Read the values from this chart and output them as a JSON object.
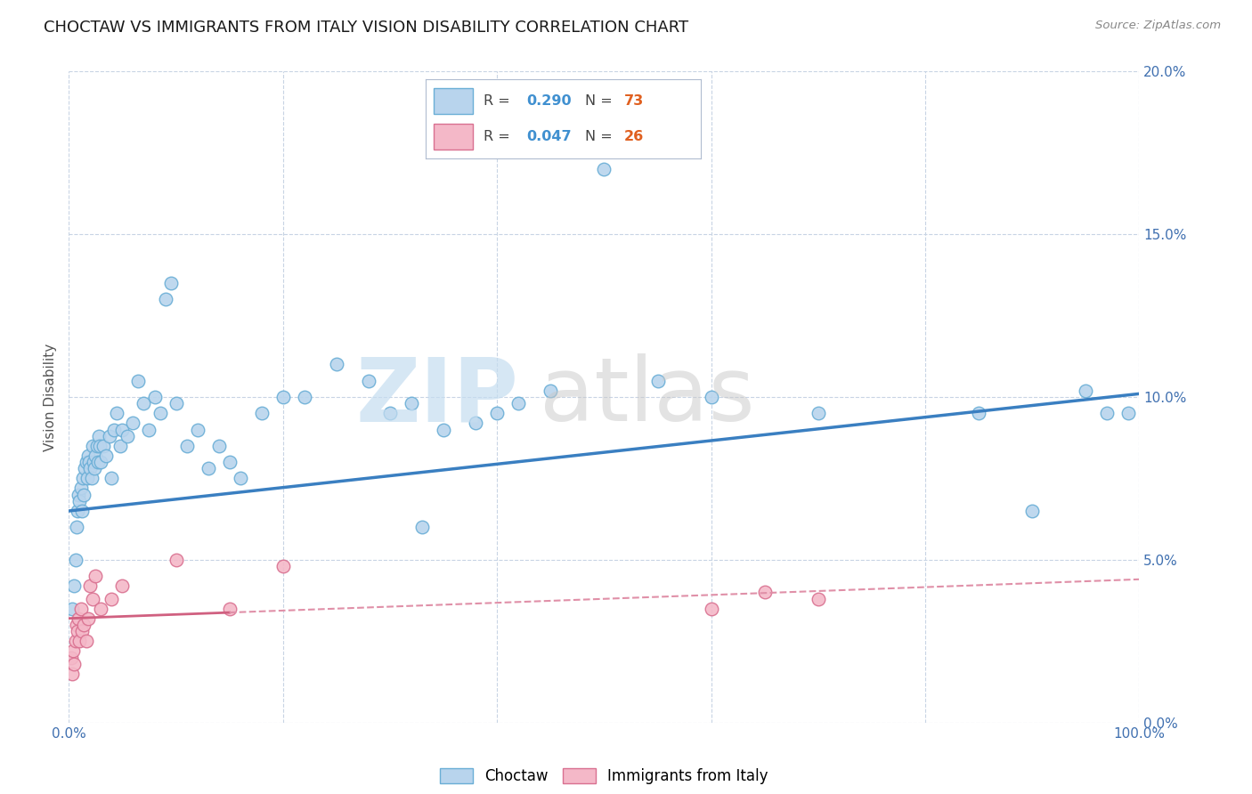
{
  "title": "CHOCTAW VS IMMIGRANTS FROM ITALY VISION DISABILITY CORRELATION CHART",
  "source": "Source: ZipAtlas.com",
  "ylabel": "Vision Disability",
  "choctaw_R": 0.29,
  "choctaw_N": 73,
  "italy_R": 0.047,
  "italy_N": 26,
  "choctaw_color": "#b8d4ed",
  "choctaw_edge": "#6aaed6",
  "italy_color": "#f4b8c8",
  "italy_edge": "#d97090",
  "trendline_choctaw": "#3a7fc1",
  "trendline_italy": "#d06080",
  "trendline_italy_dash": "#e090a8",
  "watermark_zip_color": "#c5ddf0",
  "watermark_atlas_color": "#c8c8c8",
  "background_color": "#ffffff",
  "grid_color": "#c8d4e4",
  "title_color": "#1a1a1a",
  "ylabel_color": "#555555",
  "tick_color": "#4070b0",
  "legend_R_color": "#4090d0",
  "legend_N_color": "#e06020",
  "xlim": [
    0,
    100
  ],
  "ylim": [
    0,
    20
  ],
  "yticks": [
    0,
    5,
    10,
    15,
    20
  ],
  "ytick_labels": [
    "0.0%",
    "5.0%",
    "10.0%",
    "15.0%",
    "20.0%"
  ],
  "xticks": [
    0,
    20,
    40,
    60,
    80,
    100
  ],
  "xtick_labels": [
    "0.0%",
    "",
    "",
    "",
    "",
    "100.0%"
  ],
  "choctaw_x": [
    0.3,
    0.5,
    0.6,
    0.7,
    0.8,
    0.9,
    1.0,
    1.1,
    1.2,
    1.3,
    1.4,
    1.5,
    1.6,
    1.7,
    1.8,
    1.9,
    2.0,
    2.1,
    2.2,
    2.3,
    2.4,
    2.5,
    2.6,
    2.7,
    2.8,
    2.9,
    3.0,
    3.2,
    3.5,
    3.8,
    4.0,
    4.2,
    4.5,
    4.8,
    5.0,
    5.5,
    6.0,
    6.5,
    7.0,
    7.5,
    8.0,
    8.5,
    9.0,
    9.5,
    10.0,
    11.0,
    12.0,
    13.0,
    14.0,
    15.0,
    16.0,
    18.0,
    20.0,
    22.0,
    25.0,
    28.0,
    30.0,
    32.0,
    35.0,
    38.0,
    40.0,
    42.0,
    45.0,
    50.0,
    55.0,
    60.0,
    70.0,
    85.0,
    90.0,
    95.0,
    97.0,
    99.0,
    33.0
  ],
  "choctaw_y": [
    3.5,
    4.2,
    5.0,
    6.0,
    6.5,
    7.0,
    6.8,
    7.2,
    6.5,
    7.5,
    7.0,
    7.8,
    8.0,
    7.5,
    8.2,
    8.0,
    7.8,
    7.5,
    8.5,
    8.0,
    7.8,
    8.2,
    8.5,
    8.0,
    8.8,
    8.5,
    8.0,
    8.5,
    8.2,
    8.8,
    7.5,
    9.0,
    9.5,
    8.5,
    9.0,
    8.8,
    9.2,
    10.5,
    9.8,
    9.0,
    10.0,
    9.5,
    13.0,
    13.5,
    9.8,
    8.5,
    9.0,
    7.8,
    8.5,
    8.0,
    7.5,
    9.5,
    10.0,
    10.0,
    11.0,
    10.5,
    9.5,
    9.8,
    9.0,
    9.2,
    9.5,
    9.8,
    10.2,
    17.0,
    10.5,
    10.0,
    9.5,
    9.5,
    6.5,
    10.2,
    9.5,
    9.5,
    6.0
  ],
  "italy_x": [
    0.2,
    0.3,
    0.4,
    0.5,
    0.6,
    0.7,
    0.8,
    0.9,
    1.0,
    1.1,
    1.2,
    1.4,
    1.6,
    1.8,
    2.0,
    2.2,
    2.5,
    3.0,
    4.0,
    5.0,
    10.0,
    15.0,
    20.0,
    60.0,
    65.0,
    70.0
  ],
  "italy_y": [
    2.0,
    1.5,
    2.2,
    1.8,
    2.5,
    3.0,
    2.8,
    3.2,
    2.5,
    3.5,
    2.8,
    3.0,
    2.5,
    3.2,
    4.2,
    3.8,
    4.5,
    3.5,
    3.8,
    4.2,
    5.0,
    3.5,
    4.8,
    3.5,
    4.0,
    3.8
  ],
  "italy_solid_x_end": 15.0,
  "choctaw_trendline_b": 6.5,
  "choctaw_trendline_slope": 0.036,
  "italy_trendline_b": 3.2,
  "italy_trendline_slope": 0.012
}
